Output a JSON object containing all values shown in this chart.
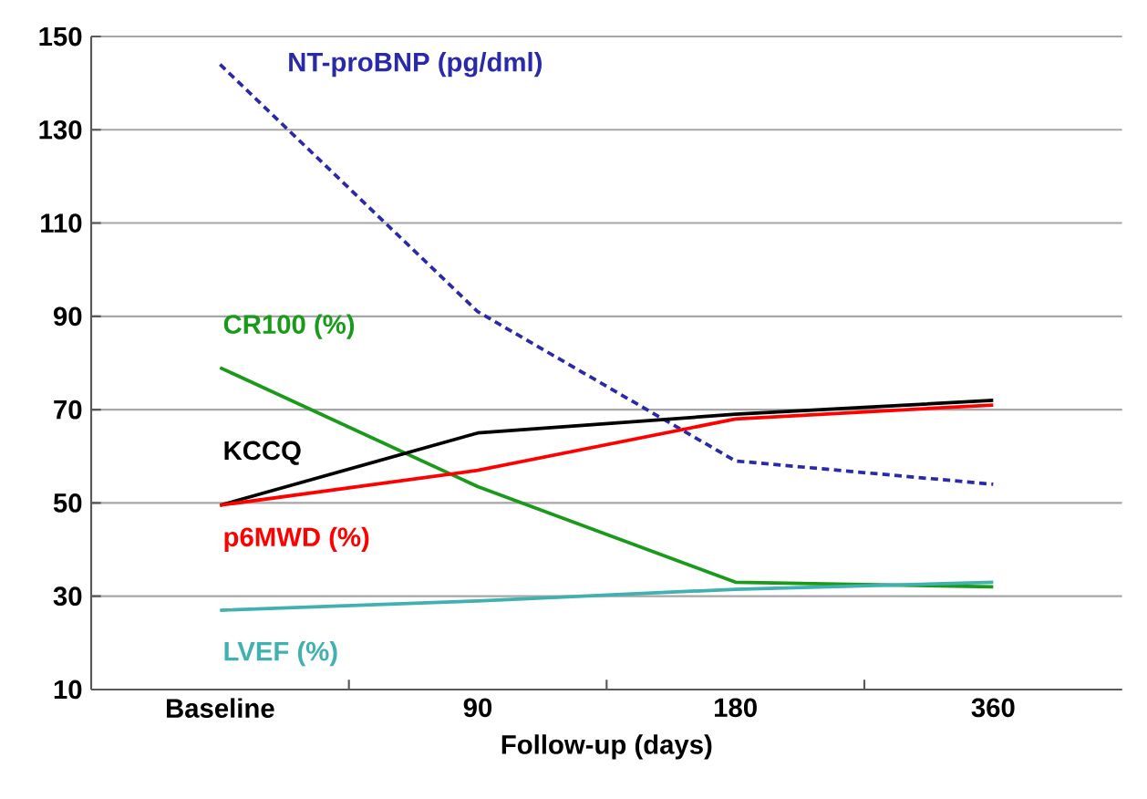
{
  "chart_data": {
    "type": "line",
    "xlabel": "Follow-up (days)",
    "categories": [
      "Baseline",
      "90",
      "180",
      "360"
    ],
    "ylim": [
      10,
      150
    ],
    "yticks": [
      10,
      30,
      50,
      70,
      90,
      110,
      130,
      150
    ],
    "grid": "y",
    "legend": false,
    "marker": "none",
    "series": [
      {
        "name": "NT-proBNP (pg/dml)",
        "color": "#2a2aa8",
        "line_style": "dashed",
        "values": [
          144,
          91,
          59,
          54
        ]
      },
      {
        "name": "CR100 (%)",
        "color": "#1a9a1a",
        "line_style": "solid",
        "values": [
          79,
          53.5,
          33,
          32
        ]
      },
      {
        "name": "KCCQ",
        "color": "#000000",
        "line_style": "solid",
        "values": [
          49.5,
          65,
          69,
          72
        ]
      },
      {
        "name": "p6MWD (%)",
        "color": "#ff0000",
        "line_style": "solid",
        "values": [
          49.5,
          57,
          68,
          71
        ]
      },
      {
        "name": "LVEF (%)",
        "color": "#40b0b0",
        "line_style": "solid",
        "values": [
          27,
          29,
          31.5,
          33
        ]
      }
    ]
  }
}
